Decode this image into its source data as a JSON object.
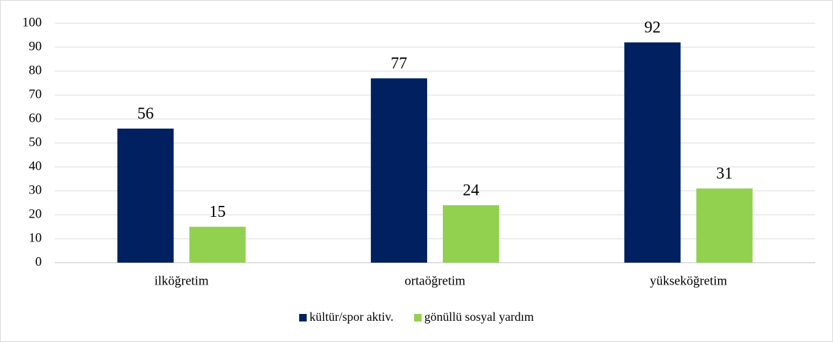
{
  "chart_data": {
    "type": "bar",
    "categories": [
      "ilköğretim",
      "ortaöğretim",
      "yükseköğretim"
    ],
    "series": [
      {
        "name": "kültür/spor aktiv.",
        "color": "#002060",
        "values": [
          56,
          77,
          92
        ]
      },
      {
        "name": "gönüllü sosyal yardım",
        "color": "#92d050",
        "values": [
          15,
          24,
          31
        ]
      }
    ],
    "ylim": [
      0,
      100
    ],
    "yticks": [
      0,
      10,
      20,
      30,
      40,
      50,
      60,
      70,
      80,
      90,
      100
    ],
    "grid": true,
    "legend": "bottom"
  }
}
